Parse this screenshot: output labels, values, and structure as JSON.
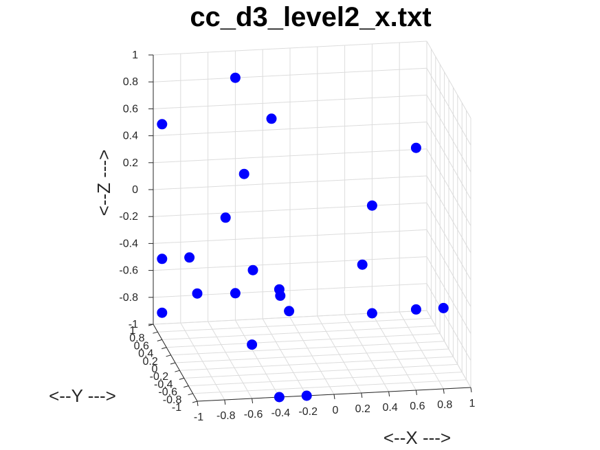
{
  "chart_data": {
    "type": "scatter",
    "title": "cc_d3_level2_x.txt",
    "xlabel": "<--X --->",
    "ylabel": "<--Y --->",
    "zlabel": "<--Z --->",
    "xlim": [
      -1,
      1
    ],
    "ylim": [
      -1,
      1
    ],
    "zlim": [
      -1,
      1
    ],
    "grid": true,
    "marker_color": "#0000ff",
    "x_tick_labels": [
      "-1",
      "-0.8",
      "-0.6",
      "-0.4",
      "-0.2",
      "0",
      "0.2",
      "0.4",
      "0.6",
      "0.8",
      "1"
    ],
    "y_tick_labels": [
      "-1",
      "-0.8",
      "-0.6",
      "-0.4",
      "-0.2",
      "0",
      "0.2",
      "0.4",
      "0.6",
      "0.8",
      "1"
    ],
    "z_tick_labels": [
      "-1",
      "-0.8",
      "-0.6",
      "-0.4",
      "-0.2",
      "0",
      "0.2",
      "0.4",
      "0.6",
      "0.8",
      "1"
    ],
    "points": [
      {
        "x": -0.4,
        "y": 1.0,
        "z": 0.8
      },
      {
        "x": -0.4,
        "y": -1.0,
        "z": -0.2
      },
      {
        "x": -0.4,
        "y": -1.0,
        "z": -1.0
      },
      {
        "x": -0.4,
        "y": 1.0,
        "z": -0.8
      },
      {
        "x": -0.4,
        "y": 0.6,
        "z": 0.2
      },
      {
        "x": -0.4,
        "y": 0.2,
        "z": -0.4
      },
      {
        "x": -0.2,
        "y": 0.6,
        "z": 0.6
      },
      {
        "x": 0.6,
        "y": -1.0,
        "z": 0.8
      },
      {
        "x": 0.6,
        "y": -1.0,
        "z": -0.4
      },
      {
        "x": -0.6,
        "y": 0.2,
        "z": 0.0
      },
      {
        "x": -0.6,
        "y": -1.0,
        "z": -0.6
      },
      {
        "x": -0.8,
        "y": 0.6,
        "z": -0.4
      },
      {
        "x": -1.0,
        "y": 0.6,
        "z": 0.6
      },
      {
        "x": -1.0,
        "y": 0.6,
        "z": -0.4
      },
      {
        "x": -1.0,
        "y": 0.6,
        "z": -0.8
      },
      {
        "x": -1.0,
        "y": -1.0,
        "z": -0.2
      },
      {
        "x": -0.2,
        "y": 0.2,
        "z": -0.6
      },
      {
        "x": -0.2,
        "y": -0.2,
        "z": -0.6
      },
      {
        "x": -0.2,
        "y": -1.0,
        "z": -1.0
      },
      {
        "x": 0.4,
        "y": 0.2,
        "z": -0.4
      },
      {
        "x": 0.6,
        "y": 1.0,
        "z": -0.2
      },
      {
        "x": 0.6,
        "y": 1.0,
        "z": -1.0
      },
      {
        "x": 0.8,
        "y": -1.0,
        "z": -0.4
      }
    ]
  }
}
